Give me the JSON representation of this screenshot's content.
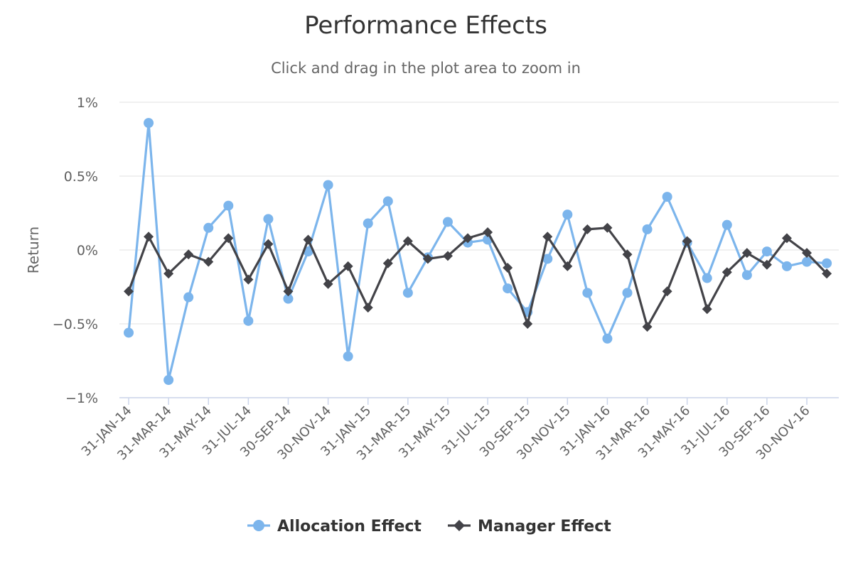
{
  "chart_data": {
    "type": "line",
    "title": "Performance Effects",
    "subtitle": "Click and drag in the plot area to zoom in",
    "xlabel": "",
    "ylabel": "Return",
    "ylim": [
      -1,
      1
    ],
    "yticks": [
      1,
      0.5,
      0,
      -0.5,
      -1
    ],
    "ytick_labels": [
      "1%",
      "0.5%",
      "0%",
      "−0.5%",
      "−1%"
    ],
    "grid": true,
    "legend_position": "bottom-center",
    "categories": [
      "31-JAN-14",
      "28-FEB-14",
      "31-MAR-14",
      "30-APR-14",
      "31-MAY-14",
      "30-JUN-14",
      "31-JUL-14",
      "31-AUG-14",
      "30-SEP-14",
      "31-OCT-14",
      "30-NOV-14",
      "31-DEC-14",
      "31-JAN-15",
      "28-FEB-15",
      "31-MAR-15",
      "30-APR-15",
      "31-MAY-15",
      "30-JUN-15",
      "31-JUL-15",
      "31-AUG-15",
      "30-SEP-15",
      "31-OCT-15",
      "30-NOV-15",
      "31-DEC-15",
      "31-JAN-16",
      "29-FEB-16",
      "31-MAR-16",
      "30-APR-16",
      "31-MAY-16",
      "30-JUN-16",
      "31-JUL-16",
      "31-AUG-16",
      "30-SEP-16",
      "31-OCT-16",
      "30-NOV-16",
      "31-DEC-16"
    ],
    "xtick_labels": [
      "31-JAN-14",
      "31-MAR-14",
      "31-MAY-14",
      "31-JUL-14",
      "30-SEP-14",
      "30-NOV-14",
      "31-JAN-15",
      "31-MAR-15",
      "31-MAY-15",
      "31-JUL-15",
      "30-SEP-15",
      "30-NOV-15",
      "31-JAN-16",
      "31-MAR-16",
      "31-MAY-16",
      "31-JUL-16",
      "30-SEP-16",
      "30-NOV-16"
    ],
    "series": [
      {
        "name": "Allocation Effect",
        "color": "#7cb5ec",
        "marker": "circle",
        "values": [
          -0.56,
          0.86,
          -0.88,
          -0.32,
          0.15,
          0.3,
          -0.48,
          0.21,
          -0.33,
          -0.01,
          0.44,
          -0.72,
          0.18,
          0.33,
          -0.29,
          -0.05,
          0.19,
          0.05,
          0.07,
          -0.26,
          -0.42,
          -0.06,
          0.24,
          -0.29,
          -0.6,
          -0.29,
          0.14,
          0.36,
          0.05,
          -0.19,
          0.17,
          -0.17,
          -0.01,
          -0.11,
          -0.08,
          -0.09
        ]
      },
      {
        "name": "Manager Effect",
        "color": "#434348",
        "marker": "diamond",
        "values": [
          -0.28,
          0.09,
          -0.16,
          -0.03,
          -0.08,
          0.08,
          -0.2,
          0.04,
          -0.28,
          0.07,
          -0.23,
          -0.11,
          -0.39,
          -0.09,
          0.06,
          -0.06,
          -0.04,
          0.08,
          0.12,
          -0.12,
          -0.5,
          0.09,
          -0.11,
          0.14,
          0.15,
          -0.03,
          -0.52,
          -0.28,
          0.06,
          -0.4,
          -0.15,
          -0.02,
          -0.1,
          0.08,
          -0.02,
          -0.16
        ]
      }
    ]
  }
}
